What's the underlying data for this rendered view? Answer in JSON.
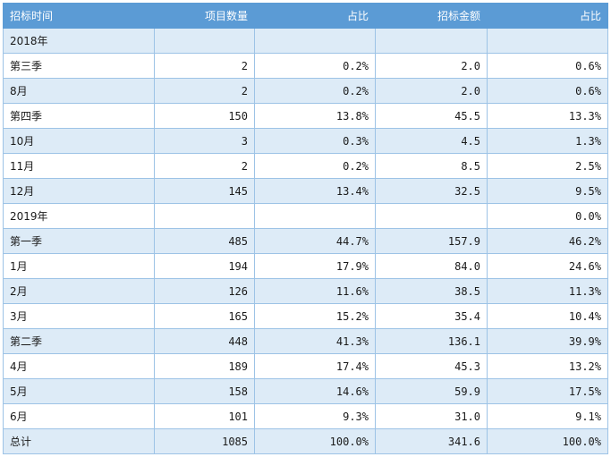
{
  "table": {
    "headers": [
      "招标时间",
      "项目数量",
      "占比",
      "招标金额",
      "占比"
    ],
    "rows": [
      [
        "2018年",
        "",
        "",
        "",
        ""
      ],
      [
        "第三季",
        "2",
        "0.2%",
        "2.0",
        "0.6%"
      ],
      [
        "8月",
        "2",
        "0.2%",
        "2.0",
        "0.6%"
      ],
      [
        "第四季",
        "150",
        "13.8%",
        "45.5",
        "13.3%"
      ],
      [
        "10月",
        "3",
        "0.3%",
        "4.5",
        "1.3%"
      ],
      [
        "11月",
        "2",
        "0.2%",
        "8.5",
        "2.5%"
      ],
      [
        "12月",
        "145",
        "13.4%",
        "32.5",
        "9.5%"
      ],
      [
        "2019年",
        "",
        "",
        "",
        "0.0%"
      ],
      [
        "第一季",
        "485",
        "44.7%",
        "157.9",
        "46.2%"
      ],
      [
        "1月",
        "194",
        "17.9%",
        "84.0",
        "24.6%"
      ],
      [
        "2月",
        "126",
        "11.6%",
        "38.5",
        "11.3%"
      ],
      [
        "3月",
        "165",
        "15.2%",
        "35.4",
        "10.4%"
      ],
      [
        "第二季",
        "448",
        "41.3%",
        "136.1",
        "39.9%"
      ],
      [
        "4月",
        "189",
        "17.4%",
        "45.3",
        "13.2%"
      ],
      [
        "5月",
        "158",
        "14.6%",
        "59.9",
        "17.5%"
      ],
      [
        "6月",
        "101",
        "9.3%",
        "31.0",
        "9.1%"
      ],
      [
        "总计",
        "1085",
        "100.0%",
        "341.6",
        "100.0%"
      ]
    ]
  },
  "colors": {
    "header_bg": "#5b9bd5",
    "band_bg": "#ddebf7",
    "border": "#9dc3e6"
  }
}
